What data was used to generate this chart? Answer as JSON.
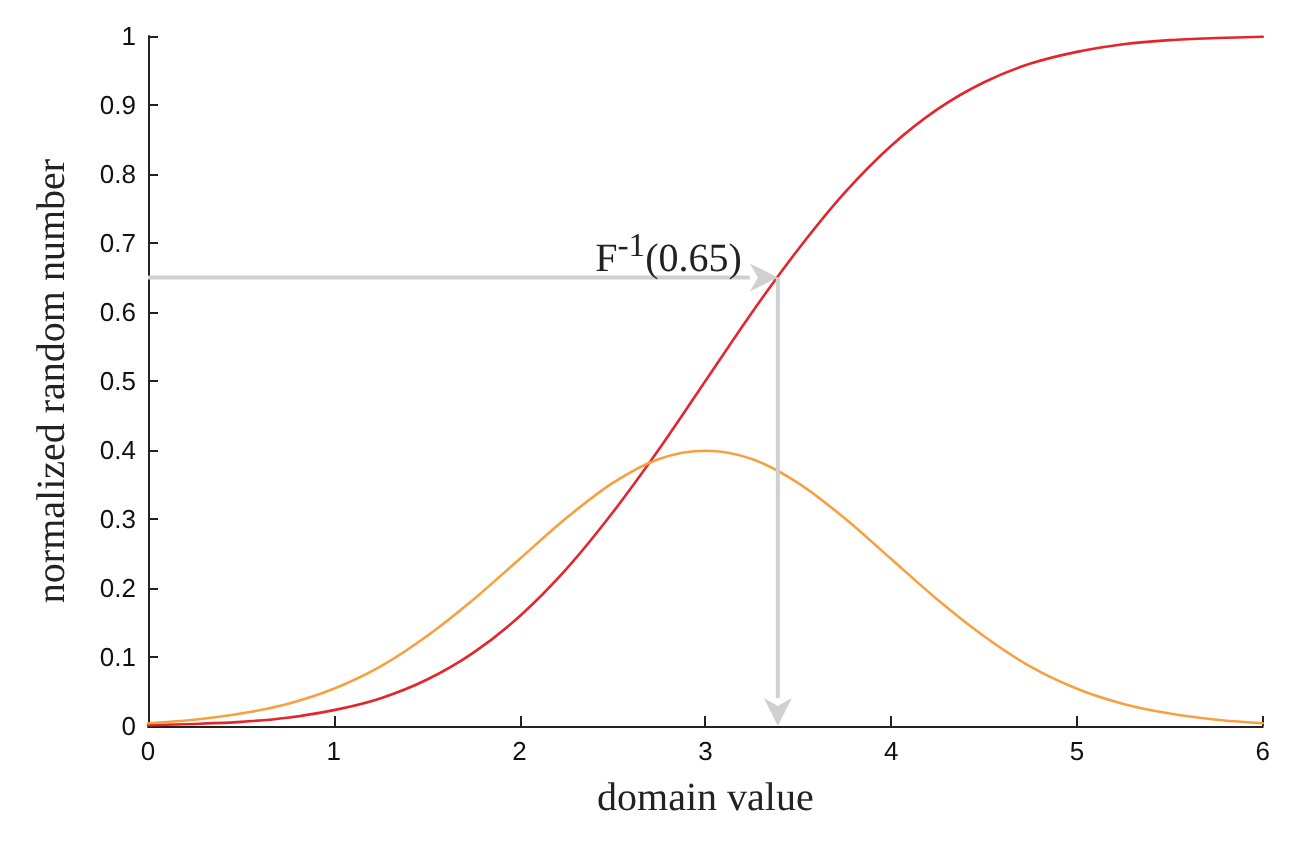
{
  "chart_data": {
    "type": "line",
    "xlabel": "domain value",
    "ylabel": "normalized random number",
    "x": [
      0,
      0.25,
      0.5,
      0.75,
      1,
      1.25,
      1.5,
      1.75,
      2,
      2.25,
      2.5,
      2.75,
      3,
      3.25,
      3.5,
      3.75,
      4,
      4.25,
      4.5,
      4.75,
      5,
      5.25,
      5.5,
      5.75,
      6
    ],
    "series": [
      {
        "color": "#e3262b",
        "values": [
          0.001,
          0.003,
          0.006,
          0.012,
          0.023,
          0.04,
          0.067,
          0.106,
          0.159,
          0.227,
          0.309,
          0.401,
          0.5,
          0.599,
          0.691,
          0.773,
          0.841,
          0.894,
          0.933,
          0.96,
          0.977,
          0.988,
          0.994,
          0.997,
          0.999
        ]
      },
      {
        "color": "#f7a040",
        "values": [
          0.004,
          0.009,
          0.018,
          0.032,
          0.054,
          0.086,
          0.13,
          0.183,
          0.242,
          0.301,
          0.352,
          0.387,
          0.399,
          0.387,
          0.352,
          0.301,
          0.242,
          0.183,
          0.13,
          0.086,
          0.054,
          0.032,
          0.018,
          0.009,
          0.004
        ]
      }
    ],
    "xlim": [
      0,
      6
    ],
    "xticks": [
      0,
      1,
      2,
      3,
      4,
      5,
      6
    ],
    "ylim": [
      0,
      1
    ],
    "yticks": [
      0,
      0.1,
      0.2,
      0.3,
      0.4,
      0.5,
      0.6,
      0.7,
      0.8,
      0.9,
      1
    ],
    "grid": false,
    "marker": "none",
    "line_style": "solid",
    "annotations": [
      {
        "text": "F$^{-1}$(0.65)",
        "x": 3.39,
        "y": 0.65
      }
    ]
  }
}
